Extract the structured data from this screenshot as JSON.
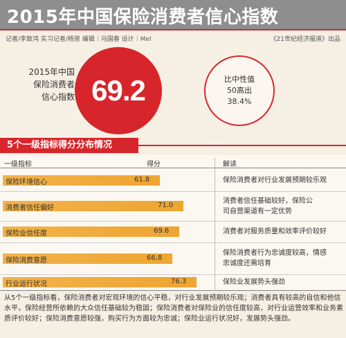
{
  "header": {
    "title": "2015年中国保险消费者信心指数",
    "credits": "记者/李致鸿 实习记者/杨崇  编辑｜马国春 设计｜Mel",
    "publisher": "《21世纪经济报道》出品"
  },
  "index": {
    "label_lines": [
      "2015年中国",
      "保险消费者",
      "信心指数"
    ],
    "value": "69.2",
    "compare_lines": [
      "比中性值",
      "50高出",
      "38.4%"
    ]
  },
  "section": {
    "title": "5个一级指标得分分布情况"
  },
  "table": {
    "col_indicator": "一级指标",
    "col_score": "得分",
    "col_interp": "解读"
  },
  "chart_data": {
    "type": "bar",
    "title": "5个一级指标得分分布情况",
    "categories": [
      "保险环境信心",
      "消费者信任偏好",
      "保险业信任度",
      "保险消费意愿",
      "行业运行状况"
    ],
    "values": [
      61.8,
      71.0,
      69.6,
      66.8,
      76.3
    ],
    "value_labels": [
      "61.8",
      "71.0",
      "69.6",
      "66.8",
      "76.3"
    ],
    "interpretations": [
      [
        "保险消费者对行业发展预期较乐观"
      ],
      [
        "消费者信任基础较好，保险公",
        "司自营渠道有一定优势"
      ],
      [
        "消费者对服务质量和效率评价较好"
      ],
      [
        "保险消费者行为忠诚度较高，情感",
        "忠诚度还需培育"
      ],
      [
        "保险业发展势头强劲"
      ]
    ],
    "bar_color": "#f0a93a"
  },
  "summary": "从5个一级指标看，保险消费者对宏观环境的信心平稳，对行业发展预期较乐观；消费者具有较高的自信和他信水平，保险经营所依赖的大众信任基础较为稳固；保险消费者对保险业的信任度较高，对行业运营效率和业务素质评价较好；保险消费意愿较强，购买行为方面较为忠诚；保险业运行状况好，发展势头强劲。",
  "colors": {
    "accent": "#d7262b",
    "title_bar": "#8e8e8e",
    "background": "#f6efe4"
  }
}
